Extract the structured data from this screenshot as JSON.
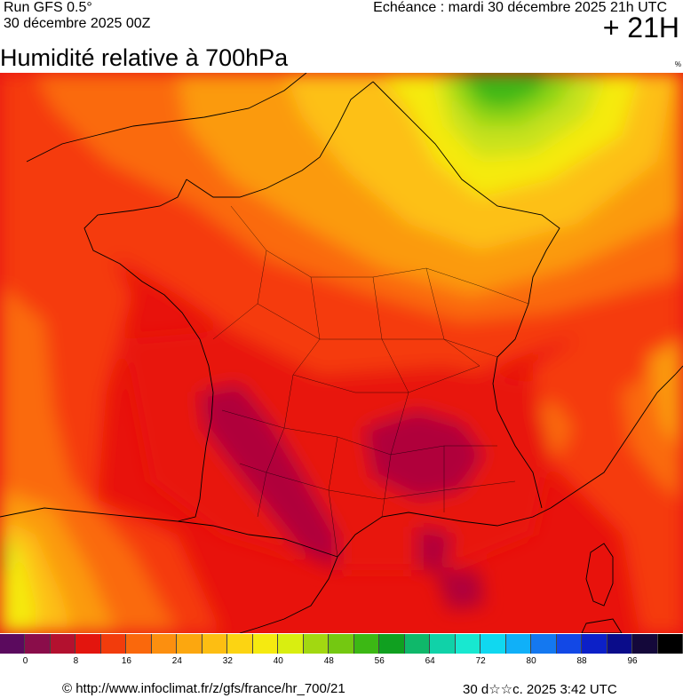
{
  "header": {
    "run_label": "Run GFS 0.5°",
    "run_date": "30 décembre 2025 00Z",
    "echeance": "Echéance : mardi 30 décembre 2025 21h UTC",
    "horizon": "+ 21H"
  },
  "title": "Humidité relative à 700hPa",
  "unit": "%",
  "map": {
    "field": "relative-humidity-700hPa",
    "colors": {
      "very_low": "#7a0040",
      "low": "#b0003a",
      "red": "#e8120c",
      "red_orange": "#f53a0a",
      "orange": "#fa6a0a",
      "orange_light": "#fb9a0e",
      "yellow_orange": "#fdc012",
      "yellow": "#f5ea10",
      "yellow_green": "#c8e21a",
      "green_light": "#8ed414",
      "green": "#3cb814"
    }
  },
  "legend": {
    "colors": [
      "#5b0a5e",
      "#8a0d4a",
      "#b3112f",
      "#e3150e",
      "#f23c0c",
      "#fa680c",
      "#fc8f0f",
      "#fca70f",
      "#fdbe12",
      "#fcd412",
      "#f5ea10",
      "#d9ee10",
      "#a2d811",
      "#74c811",
      "#3cb814",
      "#10a020",
      "#0fb86a",
      "#10d2a8",
      "#18e8d0",
      "#10d8f0",
      "#10b0f8",
      "#1478f0",
      "#1248e6",
      "#0c20c8",
      "#0a0c8a",
      "#14083a",
      "#000000"
    ],
    "labels": [
      "0",
      "8",
      "16",
      "24",
      "32",
      "40",
      "48",
      "56",
      "64",
      "72",
      "80",
      "88",
      "96"
    ]
  },
  "footer": {
    "url": "© http://www.infoclimat.fr/z/gfs/france/hr_700/21",
    "time": "30 d☆☆c. 2025  3:42 UTC"
  }
}
